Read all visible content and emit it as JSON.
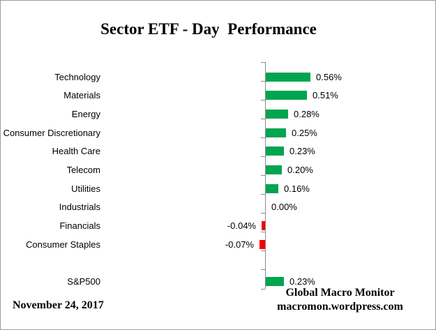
{
  "title": "Sector ETF - Day  Performance",
  "footer": {
    "date": "November 24, 2017",
    "brand_line1": "Global Macro Monitor",
    "brand_line2": "macromon.wordpress.com"
  },
  "chart_data": {
    "type": "bar",
    "orientation": "horizontal",
    "title": "Sector ETF - Day  Performance",
    "categories": [
      "Technology",
      "Materials",
      "Energy",
      "Consumer Discretionary",
      "Health Care",
      "Telecom",
      "Utilities",
      "Industrials",
      "Financials",
      "Consumer Staples",
      "S&P500"
    ],
    "values": [
      0.56,
      0.51,
      0.28,
      0.25,
      0.23,
      0.2,
      0.16,
      0.0,
      -0.04,
      -0.07,
      0.23
    ],
    "value_labels": [
      "0.56%",
      "0.51%",
      "0.28%",
      "0.25%",
      "0.23%",
      "0.20%",
      "0.16%",
      "0.00%",
      "-0.04%",
      "-0.07%",
      "0.23%"
    ],
    "gap_before_last": true,
    "xlabel": "",
    "ylabel": "",
    "xlim_percent": [
      -0.2,
      2.0
    ],
    "grid": "off",
    "legend": "none",
    "colors": {
      "positive_bar": "#00A550",
      "negative_bar": "#F40000",
      "axis": "#8A8A8A",
      "text": "#000000"
    }
  }
}
